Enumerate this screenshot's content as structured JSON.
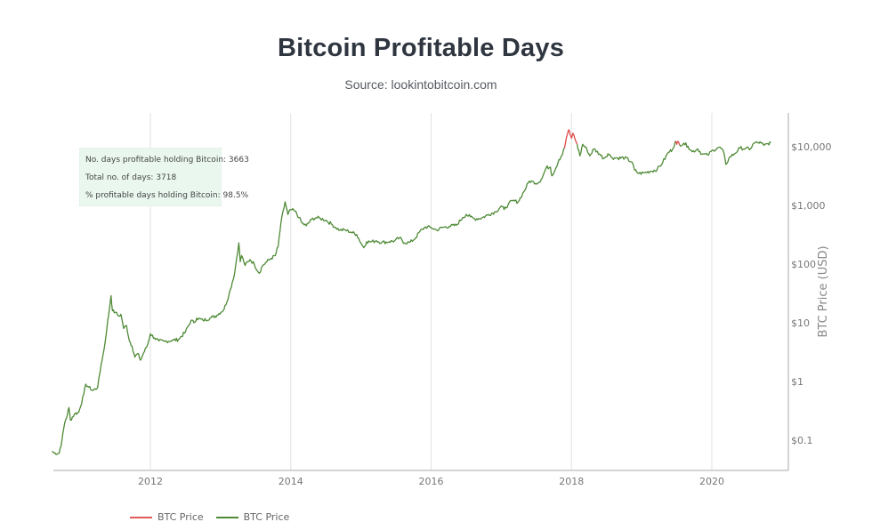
{
  "header": {
    "title": "Bitcoin Profitable Days",
    "subtitle": "Source: lookintobitcoin.com"
  },
  "annotation": {
    "line1": "No. days profitable holding Bitcoin: 3663",
    "line2": "Total no. of days: 3718",
    "line3": "% profitable days holding Bitcoin: 98.5%"
  },
  "legend": [
    {
      "label": "BTC Price",
      "color": "#e05a5a"
    },
    {
      "label": "BTC Price",
      "color": "#4e8a35"
    }
  ],
  "colors": {
    "profitable": "#4e8a35",
    "unprofitable": "#e04848",
    "grid": "#e2e2e2",
    "axis": "#aaaaaa",
    "annotation_bg": "#eaf7ef"
  },
  "chart_data": {
    "type": "line",
    "title": "Bitcoin Profitable Days",
    "subtitle": "Source: lookintobitcoin.com",
    "xlabel": "",
    "ylabel": "BTC Price (USD)",
    "yscale": "log",
    "xlim": [
      2010.6,
      2021.05
    ],
    "ylim": [
      0.03,
      40000
    ],
    "x_ticks": [
      2012,
      2014,
      2016,
      2018,
      2020
    ],
    "x_tick_labels": [
      "2012",
      "2014",
      "2016",
      "2018",
      "2020"
    ],
    "y_ticks": [
      0.1,
      1,
      10,
      100,
      1000,
      10000
    ],
    "y_tick_labels": [
      "$0.1",
      "$1",
      "$10",
      "$100",
      "$1,000",
      "$10,000"
    ],
    "y_axis_side": "right",
    "grid": {
      "x": true,
      "y": false
    },
    "legend_position": "bottom-left",
    "series": [
      {
        "name": "BTC Price",
        "status": "profitable",
        "color": "#4e8a35",
        "points": [
          [
            2010.6,
            0.065
          ],
          [
            2010.63,
            0.06
          ],
          [
            2010.7,
            0.06
          ],
          [
            2010.74,
            0.1
          ],
          [
            2010.78,
            0.2
          ],
          [
            2010.82,
            0.28
          ],
          [
            2010.84,
            0.36
          ],
          [
            2010.86,
            0.22
          ],
          [
            2010.92,
            0.28
          ],
          [
            2010.98,
            0.3
          ],
          [
            2011.05,
            0.6
          ],
          [
            2011.08,
            0.9
          ],
          [
            2011.12,
            0.8
          ],
          [
            2011.18,
            0.7
          ],
          [
            2011.25,
            0.8
          ],
          [
            2011.3,
            2.0
          ],
          [
            2011.34,
            3.5
          ],
          [
            2011.38,
            8
          ],
          [
            2011.42,
            19
          ],
          [
            2011.44,
            29
          ],
          [
            2011.46,
            16
          ],
          [
            2011.5,
            15
          ],
          [
            2011.55,
            13
          ],
          [
            2011.58,
            14
          ],
          [
            2011.62,
            8
          ],
          [
            2011.66,
            9
          ],
          [
            2011.7,
            5
          ],
          [
            2011.74,
            4
          ],
          [
            2011.78,
            2.6
          ],
          [
            2011.82,
            3.0
          ],
          [
            2011.86,
            2.3
          ],
          [
            2011.9,
            3.0
          ],
          [
            2011.96,
            4.2
          ],
          [
            2012.0,
            6.5
          ],
          [
            2012.06,
            5.5
          ],
          [
            2012.12,
            4.9
          ],
          [
            2012.2,
            4.8
          ],
          [
            2012.3,
            5.0
          ],
          [
            2012.4,
            5.2
          ],
          [
            2012.5,
            7.0
          ],
          [
            2012.58,
            11
          ],
          [
            2012.62,
            10
          ],
          [
            2012.66,
            12
          ],
          [
            2012.75,
            11
          ],
          [
            2012.85,
            12
          ],
          [
            2012.95,
            13.5
          ],
          [
            2013.05,
            17
          ],
          [
            2013.12,
            30
          ],
          [
            2013.2,
            70
          ],
          [
            2013.26,
            230
          ],
          [
            2013.28,
            110
          ],
          [
            2013.3,
            140
          ],
          [
            2013.35,
            95
          ],
          [
            2013.42,
            120
          ],
          [
            2013.48,
            100
          ],
          [
            2013.55,
            70
          ],
          [
            2013.6,
            95
          ],
          [
            2013.66,
            110
          ],
          [
            2013.72,
            125
          ],
          [
            2013.78,
            140
          ],
          [
            2013.82,
            200
          ],
          [
            2013.86,
            500
          ],
          [
            2013.92,
            1150
          ],
          [
            2013.96,
            700
          ],
          [
            2014.0,
            850
          ],
          [
            2014.06,
            800
          ],
          [
            2014.12,
            620
          ],
          [
            2014.16,
            500
          ],
          [
            2014.22,
            450
          ],
          [
            2014.3,
            580
          ],
          [
            2014.36,
            620
          ],
          [
            2014.42,
            600
          ],
          [
            2014.5,
            560
          ],
          [
            2014.58,
            480
          ],
          [
            2014.64,
            420
          ],
          [
            2014.7,
            380
          ],
          [
            2014.78,
            380
          ],
          [
            2014.86,
            350
          ],
          [
            2014.94,
            320
          ],
          [
            2015.0,
            230
          ],
          [
            2015.04,
            190
          ],
          [
            2015.08,
            240
          ],
          [
            2015.14,
            240
          ],
          [
            2015.22,
            250
          ],
          [
            2015.3,
            235
          ],
          [
            2015.4,
            240
          ],
          [
            2015.48,
            250
          ],
          [
            2015.55,
            280
          ],
          [
            2015.62,
            230
          ],
          [
            2015.7,
            235
          ],
          [
            2015.78,
            280
          ],
          [
            2015.84,
            360
          ],
          [
            2015.92,
            430
          ],
          [
            2016.0,
            420
          ],
          [
            2016.08,
            380
          ],
          [
            2016.16,
            420
          ],
          [
            2016.26,
            440
          ],
          [
            2016.36,
            460
          ],
          [
            2016.45,
            620
          ],
          [
            2016.5,
            700
          ],
          [
            2016.56,
            640
          ],
          [
            2016.62,
            590
          ],
          [
            2016.72,
            610
          ],
          [
            2016.82,
            700
          ],
          [
            2016.92,
            780
          ],
          [
            2017.0,
            980
          ],
          [
            2017.04,
            850
          ],
          [
            2017.1,
            1050
          ],
          [
            2017.16,
            1200
          ],
          [
            2017.24,
            1150
          ],
          [
            2017.32,
            1700
          ],
          [
            2017.4,
            2600
          ],
          [
            2017.46,
            2500
          ],
          [
            2017.52,
            2400
          ],
          [
            2017.58,
            2900
          ],
          [
            2017.64,
            4400
          ],
          [
            2017.7,
            4500
          ],
          [
            2017.72,
            3200
          ],
          [
            2017.78,
            4400
          ],
          [
            2017.82,
            6000
          ],
          [
            2017.86,
            7000
          ],
          [
            2017.9,
            9500
          ]
        ]
      },
      {
        "name": "BTC Price",
        "status": "unprofitable",
        "color": "#e04848",
        "points": [
          [
            2017.9,
            9500
          ],
          [
            2017.93,
            14500
          ],
          [
            2017.96,
            19500
          ],
          [
            2017.98,
            16000
          ],
          [
            2018.0,
            14000
          ],
          [
            2018.02,
            17000
          ],
          [
            2018.05,
            13500
          ],
          [
            2018.08,
            11000
          ]
        ]
      },
      {
        "name": "BTC Price",
        "status": "profitable",
        "color": "#4e8a35",
        "points": [
          [
            2018.08,
            11000
          ],
          [
            2018.12,
            7000
          ],
          [
            2018.16,
            11000
          ],
          [
            2018.22,
            9000
          ],
          [
            2018.26,
            7000
          ],
          [
            2018.32,
            9200
          ],
          [
            2018.4,
            7500
          ],
          [
            2018.46,
            6300
          ],
          [
            2018.52,
            7600
          ],
          [
            2018.58,
            6500
          ],
          [
            2018.66,
            6400
          ],
          [
            2018.76,
            6500
          ],
          [
            2018.86,
            5500
          ],
          [
            2018.9,
            4000
          ],
          [
            2018.96,
            3500
          ],
          [
            2019.04,
            3600
          ],
          [
            2019.12,
            3800
          ],
          [
            2019.22,
            4100
          ],
          [
            2019.3,
            5400
          ],
          [
            2019.38,
            8000
          ],
          [
            2019.44,
            9000
          ],
          [
            2019.48,
            12500
          ]
        ]
      },
      {
        "name": "BTC Price",
        "status": "unprofitable",
        "color": "#e04848",
        "points": [
          [
            2019.48,
            12500
          ],
          [
            2019.5,
            11000
          ],
          [
            2019.52,
            12300
          ],
          [
            2019.54,
            10800
          ]
        ]
      },
      {
        "name": "BTC Price",
        "status": "profitable",
        "color": "#4e8a35",
        "points": [
          [
            2019.54,
            10800
          ],
          [
            2019.6,
            11500
          ],
          [
            2019.66,
            10200
          ],
          [
            2019.72,
            8200
          ],
          [
            2019.8,
            9200
          ],
          [
            2019.86,
            7500
          ],
          [
            2019.94,
            7200
          ],
          [
            2020.02,
            8800
          ],
          [
            2020.1,
            9800
          ],
          [
            2020.16,
            8700
          ],
          [
            2020.2,
            5000
          ],
          [
            2020.26,
            6800
          ],
          [
            2020.32,
            7500
          ],
          [
            2020.4,
            9500
          ],
          [
            2020.48,
            9300
          ],
          [
            2020.55,
            9200
          ],
          [
            2020.6,
            11500
          ],
          [
            2020.66,
            11800
          ],
          [
            2020.7,
            11600
          ],
          [
            2020.74,
            10500
          ],
          [
            2020.8,
            11300
          ],
          [
            2020.84,
            11800
          ]
        ]
      }
    ]
  }
}
